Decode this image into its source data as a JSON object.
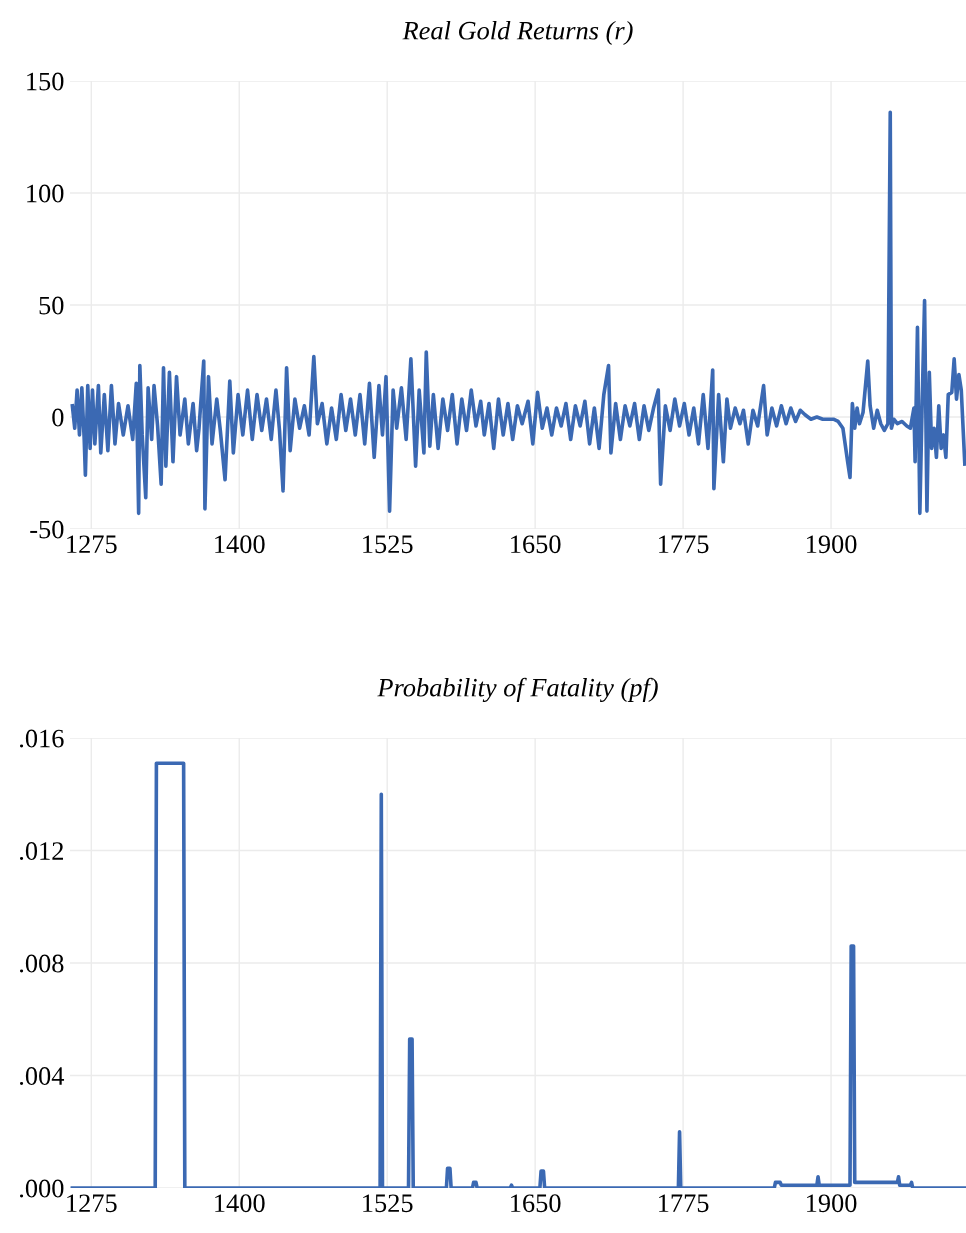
{
  "chart_data": [
    {
      "type": "line",
      "title": "Real Gold Returns (r)",
      "grid": true,
      "marker": "none",
      "line_style": "solid",
      "xlim": [
        1257,
        2014
      ],
      "xticks": [
        1275,
        1400,
        1525,
        1650,
        1775,
        1900
      ],
      "ylim": [
        -50,
        150
      ],
      "yticks": [
        -50,
        0,
        50,
        100,
        150
      ],
      "series": [
        {
          "color": "#3b69b3",
          "x": [
            1259,
            1261,
            1263,
            1265,
            1267,
            1269,
            1270,
            1272,
            1274,
            1276,
            1278,
            1281,
            1283,
            1286,
            1289,
            1292,
            1295,
            1298,
            1302,
            1306,
            1310,
            1313,
            1315,
            1316,
            1318,
            1321,
            1323,
            1326,
            1328,
            1331,
            1334,
            1336,
            1338,
            1341,
            1344,
            1347,
            1350,
            1354,
            1357,
            1361,
            1364,
            1366,
            1370,
            1371,
            1374,
            1377,
            1381,
            1384,
            1388,
            1392,
            1395,
            1399,
            1403,
            1407,
            1411,
            1415,
            1419,
            1423,
            1427,
            1431,
            1434,
            1437,
            1440,
            1443,
            1447,
            1451,
            1455,
            1459,
            1463,
            1466,
            1470,
            1474,
            1478,
            1482,
            1486,
            1490,
            1494,
            1498,
            1502,
            1506,
            1510,
            1514,
            1518,
            1521,
            1524,
            1527,
            1530,
            1533,
            1537,
            1541,
            1545,
            1549,
            1552,
            1556,
            1558,
            1561,
            1564,
            1568,
            1572,
            1576,
            1580,
            1584,
            1588,
            1592,
            1596,
            1600,
            1604,
            1607,
            1611,
            1615,
            1619,
            1623,
            1627,
            1631,
            1635,
            1639,
            1644,
            1648,
            1652,
            1656,
            1660,
            1664,
            1668,
            1672,
            1676,
            1680,
            1684,
            1688,
            1692,
            1696,
            1700,
            1704,
            1708,
            1712,
            1714,
            1718,
            1722,
            1726,
            1730,
            1734,
            1738,
            1742,
            1746,
            1750,
            1754,
            1756,
            1760,
            1764,
            1768,
            1772,
            1776,
            1780,
            1784,
            1788,
            1792,
            1796,
            1800,
            1801,
            1805,
            1809,
            1812,
            1815,
            1819,
            1823,
            1826,
            1830,
            1834,
            1838,
            1843,
            1846,
            1850,
            1854,
            1858,
            1862,
            1866,
            1870,
            1874,
            1878,
            1883,
            1888,
            1893,
            1898,
            1902,
            1906,
            1910,
            1914,
            1916,
            1918,
            1920,
            1922,
            1924,
            1927,
            1931,
            1933,
            1936,
            1939,
            1942,
            1945,
            1948,
            1950,
            1951,
            1953,
            1956,
            1960,
            1964,
            1967,
            1970,
            1971,
            1973,
            1975,
            1977,
            1979,
            1981,
            1983,
            1985,
            1987,
            1989,
            1991,
            1993,
            1995,
            1997,
            1999,
            2002,
            2004,
            2006,
            2008,
            2010,
            2013
          ],
          "values": [
            5,
            -5,
            12,
            -8,
            13,
            -10,
            -26,
            14,
            -14,
            12,
            -12,
            14,
            -16,
            10,
            -15,
            14,
            -12,
            6,
            -8,
            5,
            -10,
            15,
            -43,
            23,
            -8,
            -36,
            13,
            -10,
            14,
            -4,
            -30,
            22,
            -22,
            20,
            -20,
            18,
            -8,
            8,
            -12,
            6,
            -15,
            -5,
            25,
            -41,
            18,
            -12,
            8,
            -6,
            -28,
            16,
            -16,
            10,
            -8,
            12,
            -10,
            10,
            -6,
            8,
            -10,
            12,
            -6,
            -33,
            22,
            -15,
            8,
            -5,
            5,
            -8,
            27,
            -3,
            6,
            -12,
            4,
            -10,
            10,
            -6,
            8,
            -8,
            10,
            -12,
            15,
            -18,
            14,
            -8,
            18,
            -42,
            12,
            -5,
            13,
            -10,
            26,
            -22,
            12,
            -16,
            29,
            -13,
            10,
            -14,
            8,
            -6,
            10,
            -12,
            8,
            -6,
            12,
            -4,
            7,
            -8,
            6,
            -14,
            8,
            -8,
            6,
            -10,
            5,
            -3,
            7,
            -12,
            11,
            -5,
            4,
            -8,
            4,
            -4,
            6,
            -10,
            5,
            -4,
            7,
            -12,
            4,
            -14,
            10,
            23,
            -16,
            6,
            -10,
            5,
            -4,
            6,
            -10,
            5,
            -6,
            4,
            12,
            -30,
            5,
            -6,
            8,
            -4,
            6,
            -8,
            4,
            -12,
            10,
            -14,
            21,
            -32,
            10,
            -20,
            8,
            -5,
            4,
            -3,
            3,
            -12,
            3,
            -4,
            14,
            -8,
            4,
            -4,
            5,
            -3,
            4,
            -2,
            3,
            1,
            -1,
            0,
            -1,
            -1,
            -1,
            -2,
            -5,
            -20,
            -27,
            6,
            -5,
            4,
            -3,
            2,
            25,
            5,
            -5,
            3,
            -3,
            -6,
            -3,
            136,
            -5,
            -1,
            -3,
            -2,
            -4,
            -5,
            4,
            -20,
            40,
            -43,
            7,
            52,
            -42,
            20,
            -14,
            -5,
            -18,
            5,
            -14,
            -8,
            -18,
            10,
            11,
            26,
            8,
            19,
            12,
            -21
          ]
        }
      ]
    },
    {
      "type": "line",
      "title": "Probability of Fatality (pf)",
      "grid": true,
      "marker": "none",
      "line_style": "solid",
      "xlim": [
        1257,
        2014
      ],
      "xticks": [
        1275,
        1400,
        1525,
        1650,
        1775,
        1900
      ],
      "ylim": [
        0,
        0.016
      ],
      "yticks": [
        {
          "value": 0,
          "label": ".000"
        },
        {
          "value": 0.004,
          "label": ".004"
        },
        {
          "value": 0.008,
          "label": ".008"
        },
        {
          "value": 0.012,
          "label": ".012"
        },
        {
          "value": 0.016,
          "label": ".016"
        }
      ],
      "series": [
        {
          "color": "#3b69b3",
          "x": [
            1259,
            1329,
            1330,
            1353,
            1354,
            1519,
            1520,
            1521,
            1543,
            1544,
            1546,
            1547,
            1575,
            1576,
            1578,
            1579,
            1597,
            1598,
            1600,
            1601,
            1629,
            1630,
            1631,
            1654,
            1655,
            1657,
            1658,
            1771,
            1772,
            1773,
            1852,
            1853,
            1857,
            1858,
            1888,
            1889,
            1890,
            1916,
            1917,
            1919,
            1920,
            1956,
            1957,
            1958,
            1967,
            1968,
            1969,
            2013
          ],
          "values": [
            0,
            0,
            0.0151,
            0.0151,
            0,
            0,
            0.014,
            0,
            0,
            0.0053,
            0.0053,
            0,
            0,
            0.0007,
            0.0007,
            0,
            0,
            0.0002,
            0.0002,
            0,
            0,
            0.0001,
            0,
            0,
            0.0006,
            0.0006,
            0,
            0,
            0.002,
            0,
            0,
            0.0002,
            0.0002,
            0.0001,
            0.0001,
            0.0004,
            0.0001,
            0.0001,
            0.0086,
            0.0086,
            0.0002,
            0.0002,
            0.0004,
            0.0001,
            0.0001,
            0.0002,
            0,
            0
          ]
        }
      ]
    }
  ]
}
